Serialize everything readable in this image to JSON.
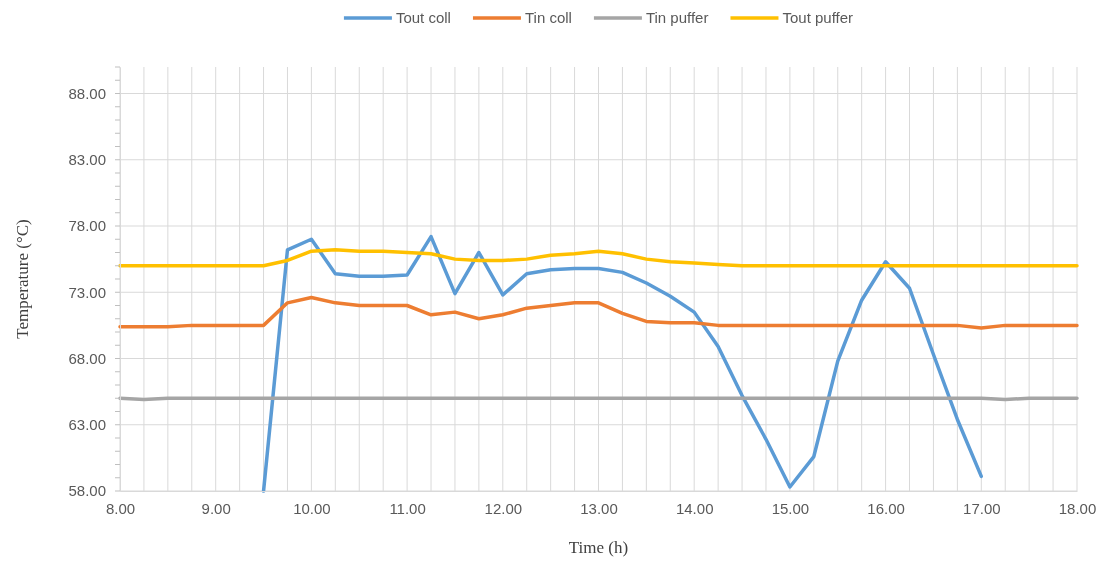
{
  "chart_data": {
    "type": "line",
    "xlabel": "Time (h)",
    "ylabel": "Temperature (°C)",
    "x": [
      8,
      8.25,
      8.5,
      8.75,
      9,
      9.25,
      9.5,
      9.75,
      10,
      10.25,
      10.5,
      10.75,
      11,
      11.25,
      11.5,
      11.75,
      12,
      12.25,
      12.5,
      12.75,
      13,
      13.25,
      13.5,
      13.75,
      14,
      14.25,
      14.5,
      14.75,
      15,
      15.25,
      15.5,
      15.75,
      16,
      16.25,
      16.5,
      16.75,
      17,
      17.25,
      17.5,
      17.75,
      18
    ],
    "series": [
      {
        "name": "Tout coll",
        "color": "#5b9bd5",
        "values": [
          null,
          null,
          null,
          null,
          null,
          null,
          58,
          76.2,
          77.0,
          74.4,
          74.2,
          74.2,
          74.3,
          77.2,
          72.9,
          76.0,
          72.8,
          74.4,
          74.7,
          74.8,
          74.8,
          74.5,
          73.7,
          72.7,
          71.5,
          68.9,
          65.2,
          61.9,
          58.3,
          60.6,
          67.8,
          72.4,
          75.3,
          73.3,
          68.3,
          63.4,
          59.1,
          null,
          null,
          null,
          null
        ]
      },
      {
        "name": "Tin coll",
        "color": "#ed7d31",
        "values": [
          70.4,
          70.4,
          70.4,
          70.5,
          70.5,
          70.5,
          70.5,
          72.2,
          72.6,
          72.2,
          72.0,
          72.0,
          72.0,
          71.3,
          71.5,
          71.0,
          71.3,
          71.8,
          72.0,
          72.2,
          72.2,
          71.4,
          70.8,
          70.7,
          70.7,
          70.5,
          70.5,
          70.5,
          70.5,
          70.5,
          70.5,
          70.5,
          70.5,
          70.5,
          70.5,
          70.5,
          70.3,
          70.5,
          70.5,
          70.5,
          70.5
        ]
      },
      {
        "name": "Tin puffer",
        "color": "#a5a5a5",
        "values": [
          65.0,
          64.9,
          65.0,
          65.0,
          65.0,
          65.0,
          65.0,
          65.0,
          65.0,
          65.0,
          65.0,
          65.0,
          65.0,
          65.0,
          65.0,
          65.0,
          65.0,
          65.0,
          65.0,
          65.0,
          65.0,
          65.0,
          65.0,
          65.0,
          65.0,
          65.0,
          65.0,
          65.0,
          65.0,
          65.0,
          65.0,
          65.0,
          65.0,
          65.0,
          65.0,
          65.0,
          65.0,
          64.9,
          65.0,
          65.0,
          65.0
        ]
      },
      {
        "name": "Tout puffer",
        "color": "#ffc000",
        "values": [
          75.0,
          75.0,
          75.0,
          75.0,
          75.0,
          75.0,
          75.0,
          75.4,
          76.1,
          76.2,
          76.1,
          76.1,
          76.0,
          75.9,
          75.5,
          75.4,
          75.4,
          75.5,
          75.8,
          75.9,
          76.1,
          75.9,
          75.5,
          75.3,
          75.2,
          75.1,
          75.0,
          75.0,
          75.0,
          75.0,
          75.0,
          75.0,
          75.0,
          75.0,
          75.0,
          75.0,
          75.0,
          75.0,
          75.0,
          75.0,
          75.0
        ]
      }
    ],
    "xlim": [
      8,
      18
    ],
    "xticks": [
      {
        "value": 8,
        "label": "8.00"
      },
      {
        "value": 8.25,
        "label": null
      },
      {
        "value": 8.5,
        "label": null
      },
      {
        "value": 8.75,
        "label": null
      },
      {
        "value": 9,
        "label": "9.00"
      },
      {
        "value": 9.25,
        "label": null
      },
      {
        "value": 9.5,
        "label": null
      },
      {
        "value": 9.75,
        "label": null
      },
      {
        "value": 10,
        "label": "10.00"
      },
      {
        "value": 10.25,
        "label": null
      },
      {
        "value": 10.5,
        "label": null
      },
      {
        "value": 10.75,
        "label": null
      },
      {
        "value": 11,
        "label": "11.00"
      },
      {
        "value": 11.25,
        "label": null
      },
      {
        "value": 11.5,
        "label": null
      },
      {
        "value": 11.75,
        "label": null
      },
      {
        "value": 12,
        "label": "12.00"
      },
      {
        "value": 12.25,
        "label": null
      },
      {
        "value": 12.5,
        "label": null
      },
      {
        "value": 12.75,
        "label": null
      },
      {
        "value": 13,
        "label": "13.00"
      },
      {
        "value": 13.25,
        "label": null
      },
      {
        "value": 13.5,
        "label": null
      },
      {
        "value": 13.75,
        "label": null
      },
      {
        "value": 14,
        "label": "14.00"
      },
      {
        "value": 14.25,
        "label": null
      },
      {
        "value": 14.5,
        "label": null
      },
      {
        "value": 14.75,
        "label": null
      },
      {
        "value": 15,
        "label": "15.00"
      },
      {
        "value": 15.25,
        "label": null
      },
      {
        "value": 15.5,
        "label": null
      },
      {
        "value": 15.75,
        "label": null
      },
      {
        "value": 16,
        "label": "16.00"
      },
      {
        "value": 16.25,
        "label": null
      },
      {
        "value": 16.5,
        "label": null
      },
      {
        "value": 16.75,
        "label": null
      },
      {
        "value": 17,
        "label": "17.00"
      },
      {
        "value": 17.25,
        "label": null
      },
      {
        "value": 17.5,
        "label": null
      },
      {
        "value": 17.75,
        "label": null
      },
      {
        "value": 18,
        "label": "18.00"
      }
    ],
    "ylim": [
      58,
      90
    ],
    "yticks": [
      {
        "value": 58,
        "label": "58.00"
      },
      {
        "value": 63,
        "label": "63.00"
      },
      {
        "value": 68,
        "label": "68.00"
      },
      {
        "value": 73,
        "label": "73.00"
      },
      {
        "value": 78,
        "label": "78.00"
      },
      {
        "value": 83,
        "label": "83.00"
      },
      {
        "value": 88,
        "label": "88.00"
      }
    ],
    "grid": true,
    "legend": "top",
    "marker": "none",
    "line_style": "solid"
  }
}
